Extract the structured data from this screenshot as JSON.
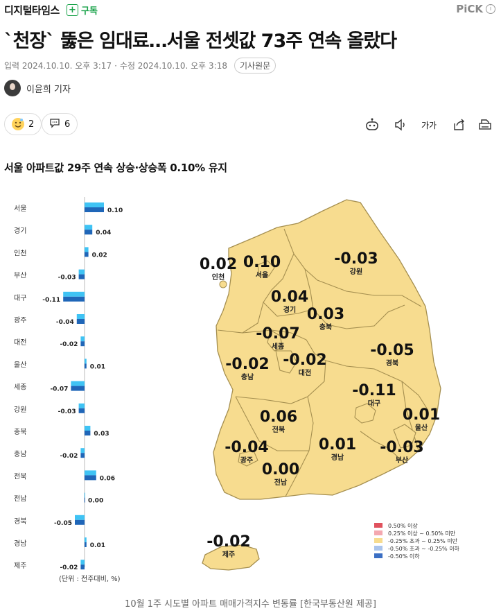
{
  "header": {
    "brand": "디지털타임스",
    "subscribe_label": "구독",
    "subscribe_icon": "+",
    "pick_label": "PiCK",
    "pick_info_icon": "i"
  },
  "article": {
    "headline": "`천장` 뚫은 임대료…서울 전셋값 73주 연속 올랐다",
    "meta_input": "입력 2024.10.10. 오후 3:17",
    "meta_sep": "·",
    "meta_edit": "수정 2024.10.10. 오후 3:18",
    "original_button": "기사원문",
    "author": "이윤희 기자",
    "reaction_count": "2",
    "comment_count": "6",
    "font_tool_label": "가가",
    "subheading": "서울 아파트값 29주 연속 상승·상승폭 0.10% 유지",
    "caption": "10월 1주 시도별 아파트 매매가격지수 변동률 [한국부동산원 제공]"
  },
  "colors": {
    "map_fill": "#f7dc8f",
    "map_stroke": "#a58f50",
    "bar_light": "#3fc3f4",
    "bar_dark": "#1f66b8",
    "accent_green": "#1aa34a"
  },
  "chart_data": {
    "type": "bar",
    "orientation": "horizontal",
    "categories": [
      "서울",
      "경기",
      "인천",
      "부산",
      "대구",
      "광주",
      "대전",
      "울산",
      "세종",
      "강원",
      "충북",
      "충남",
      "전북",
      "전남",
      "경북",
      "경남",
      "제주"
    ],
    "values": [
      0.1,
      0.04,
      0.02,
      -0.03,
      -0.11,
      -0.04,
      -0.02,
      0.01,
      -0.07,
      -0.03,
      0.03,
      -0.02,
      0.06,
      0.0,
      -0.05,
      0.01,
      -0.02
    ],
    "value_labels": [
      "0.10",
      "0.04",
      "0.02",
      "-0.03",
      "-0.11",
      "-0.04",
      "-0.02",
      "0.01",
      "-0.07",
      "-0.03",
      "0.03",
      "-0.02",
      "0.06",
      "0.00",
      "-0.05",
      "0.01",
      "-0.02"
    ],
    "unit_note": "(단위 : 전주대비, %)"
  },
  "map": {
    "regions": [
      {
        "name": "인천",
        "value": "0.02"
      },
      {
        "name": "서울",
        "value": "0.10"
      },
      {
        "name": "경기",
        "value": "0.04"
      },
      {
        "name": "강원",
        "value": "-0.03"
      },
      {
        "name": "충북",
        "value": "0.03"
      },
      {
        "name": "세종",
        "value": "-0.07"
      },
      {
        "name": "충남",
        "value": "-0.02"
      },
      {
        "name": "대전",
        "value": "-0.02"
      },
      {
        "name": "경북",
        "value": "-0.05"
      },
      {
        "name": "대구",
        "value": "-0.11"
      },
      {
        "name": "전북",
        "value": "0.06"
      },
      {
        "name": "울산",
        "value": "0.01"
      },
      {
        "name": "광주",
        "value": "-0.04"
      },
      {
        "name": "경남",
        "value": "0.01"
      },
      {
        "name": "부산",
        "value": "-0.03"
      },
      {
        "name": "전남",
        "value": "0.00"
      },
      {
        "name": "제주",
        "value": "-0.02"
      }
    ],
    "legend": [
      {
        "label": "0.50% 이상",
        "color": "#e0525e"
      },
      {
        "label": "0.25% 이상 ~ 0.50% 미만",
        "color": "#f4a8b0"
      },
      {
        "label": "-0.25% 초과 ~ 0.25% 미만",
        "color": "#f7dc8f"
      },
      {
        "label": "-0.50% 초과 ~ -0.25% 이하",
        "color": "#aac4ec"
      },
      {
        "label": "-0.50% 이하",
        "color": "#3b6fc4"
      }
    ]
  }
}
